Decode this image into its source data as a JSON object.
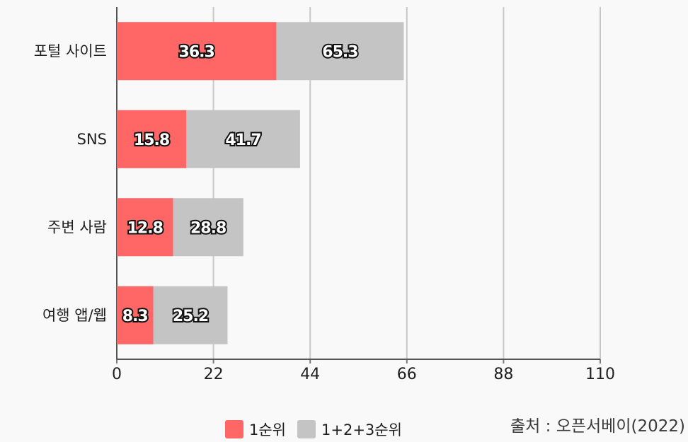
{
  "chart_data": {
    "type": "bar",
    "orientation": "horizontal",
    "categories": [
      "포털 사이트",
      "SNS",
      "주변 사람",
      "여행 앱/웹"
    ],
    "series": [
      {
        "name": "1순위",
        "values": [
          36.3,
          15.8,
          12.8,
          8.3
        ],
        "color": "#ff6666"
      },
      {
        "name": "1+2+3순위",
        "values": [
          65.3,
          41.7,
          28.8,
          25.2
        ],
        "color": "#c4c4c4"
      }
    ],
    "stacked": true,
    "xlim": [
      0,
      110
    ],
    "xticks": [
      0,
      22,
      44,
      66,
      88,
      110
    ],
    "xtick_labels": [
      "0",
      "22",
      "44",
      "66",
      "88",
      "110"
    ],
    "grid": true,
    "legend_position": "bottom-center",
    "title": "",
    "xlabel": "",
    "ylabel": ""
  },
  "legend": {
    "items": [
      {
        "label": "1순위",
        "color": "#ff6666"
      },
      {
        "label": "1+2+3순위",
        "color": "#c4c4c4"
      }
    ]
  },
  "source": "출처 : 오픈서베이(2022)"
}
